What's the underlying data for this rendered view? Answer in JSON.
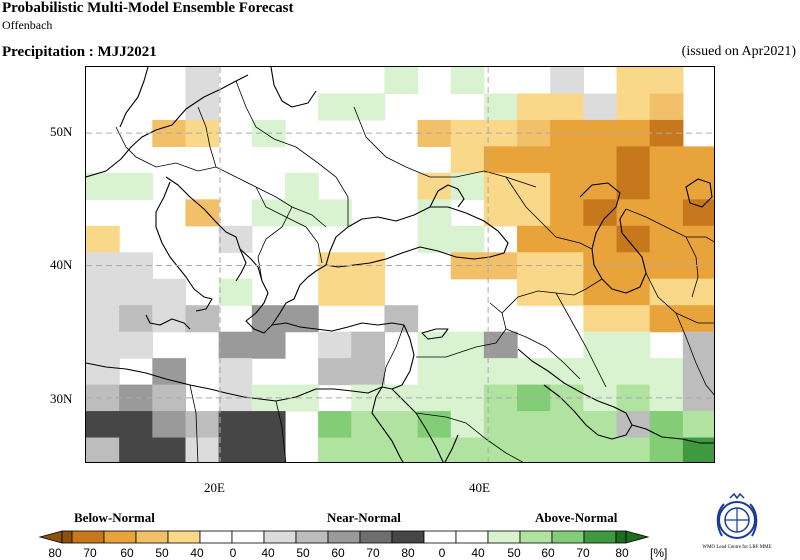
{
  "header": {
    "title": "Probabilistic Multi-Model Ensemble Forecast",
    "subtitle": "Offenbach",
    "variable_title": "Precipitation : MJJ2021",
    "issued": "(issued on Apr2021)"
  },
  "map": {
    "lon_range": [
      10,
      57
    ],
    "lat_range": [
      25,
      55
    ],
    "lat_labels": [
      {
        "value": 50,
        "text": "50N"
      },
      {
        "value": 40,
        "text": "40N"
      },
      {
        "value": 30,
        "text": "30N"
      }
    ],
    "lon_labels": [
      {
        "value": 20,
        "text": "20E"
      },
      {
        "value": 40,
        "text": "40E"
      }
    ],
    "gridlines": true
  },
  "legend": {
    "categories": [
      "Below-Normal",
      "Near-Normal",
      "Above-Normal"
    ],
    "tick_labels": [
      "80",
      "70",
      "60",
      "50",
      "40",
      "0",
      "40",
      "50",
      "60",
      "70",
      "80",
      "[%]"
    ],
    "colors": {
      "below": [
        "#8c510a",
        "#c8781c",
        "#e8a33a",
        "#f2c068",
        "#fad88a"
      ],
      "white": "#ffffff",
      "near": [
        "#dcdcdc",
        "#bdbdbd",
        "#9a9a9a",
        "#6e6e6e",
        "#464646"
      ],
      "above": [
        "#d9f2d0",
        "#b0e2a0",
        "#82cd75",
        "#3f9a3f",
        "#1f6e1f"
      ]
    }
  },
  "logo": {
    "text": "WMO Lead Centre for LRF MME",
    "icon": "wmo-logo-icon"
  }
}
